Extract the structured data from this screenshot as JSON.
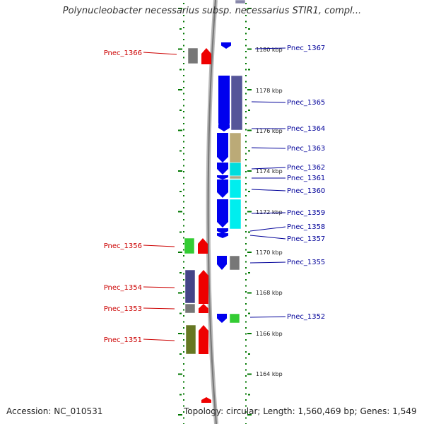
{
  "title": "Polynucleobacter necessarius subsp. necessarius STIR1, compl...",
  "footer": {
    "accession": "Accession: NC_010531",
    "summary": "Topology: circular; Length: 1,560,469 bp; Genes: 1,549"
  },
  "colors": {
    "left_label": "#cc0000",
    "right_label": "#000099",
    "tick": "#007700",
    "backbone": "#888888"
  },
  "scale_labels": [
    "1180 kbp",
    "1178 kbp",
    "1176 kbp",
    "1174 kbp",
    "1172 kbp",
    "1170 kbp",
    "1168 kbp",
    "1166 kbp",
    "1164 kbp"
  ],
  "left_genes": [
    "Pnec_1366",
    "Pnec_1356",
    "Pnec_1354",
    "Pnec_1353",
    "Pnec_1351"
  ],
  "right_genes": [
    "Pnec_1367",
    "Pnec_1365",
    "Pnec_1364",
    "Pnec_1363",
    "Pnec_1362",
    "Pnec_1361",
    "Pnec_1360",
    "Pnec_1359",
    "Pnec_1358",
    "Pnec_1357",
    "Pnec_1355",
    "Pnec_1352"
  ]
}
